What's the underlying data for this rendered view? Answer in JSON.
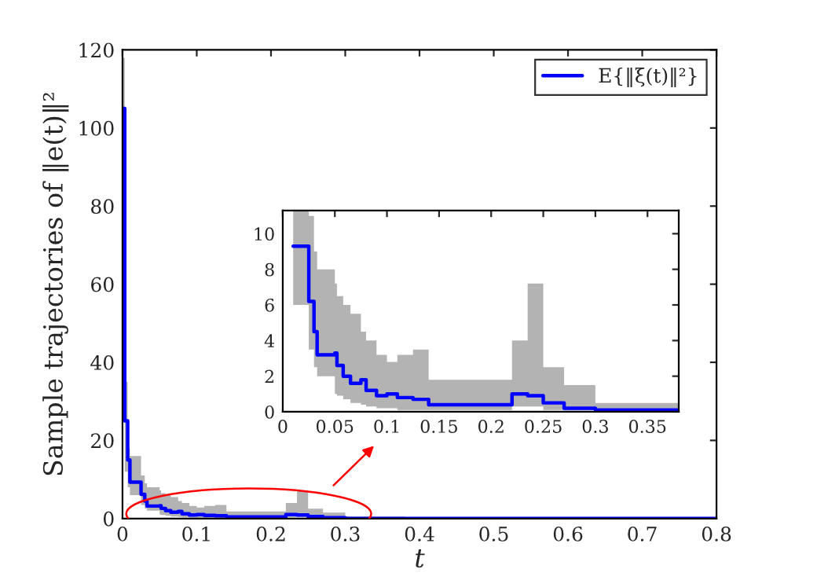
{
  "chart_data": [
    {
      "type": "step",
      "xlabel": "t",
      "ylabel": "Sample trajectories of ‖e(t)‖²",
      "legend": "top right",
      "grid": false,
      "x": [
        0,
        0.003,
        0.007,
        0.01,
        0.025,
        0.03,
        0.033,
        0.05,
        0.052,
        0.058,
        0.065,
        0.075,
        0.08,
        0.09,
        0.1,
        0.11,
        0.125,
        0.14,
        0.22,
        0.235,
        0.25,
        0.27,
        0.3,
        0.38,
        0.8
      ],
      "series": [
        {
          "name": "E{‖ξ(t)‖²}",
          "color": "#0000ff",
          "values": [
            105,
            25,
            15,
            9.3,
            6.2,
            4.5,
            3.2,
            3.3,
            2.6,
            2.0,
            1.6,
            1.8,
            1.2,
            0.9,
            1.0,
            0.8,
            0.7,
            0.4,
            1.0,
            0.9,
            0.5,
            0.2,
            0,
            0,
            0
          ],
          "upper": [
            118,
            35,
            18,
            16,
            11,
            9,
            8,
            7.2,
            6.5,
            6,
            5.5,
            4.5,
            4,
            3.2,
            2.8,
            3.2,
            3.5,
            1.8,
            4,
            7.2,
            2.5,
            1.5,
            0.5,
            0.1,
            0
          ],
          "lower": [
            90,
            12,
            8,
            6,
            3.5,
            2.5,
            2,
            1,
            0.9,
            0.7,
            0.5,
            0.4,
            0.3,
            0.2,
            0.2,
            0.1,
            0.1,
            0.1,
            0.3,
            0.3,
            0.1,
            0.05,
            0,
            0,
            0
          ]
        }
      ],
      "xlim": [
        0,
        0.8
      ],
      "ylim": [
        0,
        120
      ],
      "xticks": [
        0,
        0.1,
        0.2,
        0.3,
        0.4,
        0.5,
        0.6,
        0.7,
        0.8
      ],
      "yticks": [
        0,
        20,
        40,
        60,
        80,
        100,
        120
      ]
    },
    {
      "type": "step",
      "legend": false,
      "grid": false,
      "x": [
        0.01,
        0.025,
        0.03,
        0.033,
        0.05,
        0.052,
        0.058,
        0.065,
        0.075,
        0.08,
        0.09,
        0.1,
        0.11,
        0.125,
        0.14,
        0.22,
        0.235,
        0.25,
        0.27,
        0.3,
        0.38
      ],
      "series": [
        {
          "color": "#0000ff",
          "values": [
            9.3,
            6.2,
            4.5,
            3.2,
            3.3,
            2.6,
            2.0,
            1.6,
            1.8,
            1.2,
            0.9,
            1.0,
            0.8,
            0.7,
            0.4,
            1.0,
            0.9,
            0.5,
            0.2,
            0.1,
            0
          ],
          "upper": [
            11.3,
            11,
            9,
            8,
            7.2,
            6.5,
            6,
            5.5,
            4.5,
            4,
            3.2,
            2.8,
            3.2,
            3.5,
            1.8,
            4,
            7.2,
            2.5,
            1.5,
            0.5,
            0.1
          ],
          "lower": [
            6,
            3.5,
            2.5,
            2,
            1,
            0.9,
            0.7,
            0.5,
            0.4,
            0.3,
            0.2,
            0.2,
            0.1,
            0.1,
            0.1,
            0.3,
            0.3,
            0.1,
            0.1,
            0,
            0
          ]
        }
      ],
      "xlim": [
        0,
        0.38
      ],
      "ylim": [
        0,
        11.3
      ],
      "xticks": [
        0,
        0.05,
        0.1,
        0.15,
        0.2,
        0.25,
        0.3,
        0.35
      ],
      "yticks": [
        0,
        2,
        4,
        6,
        8,
        10
      ]
    }
  ]
}
